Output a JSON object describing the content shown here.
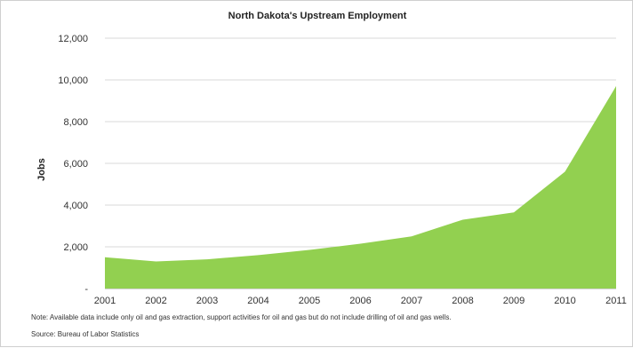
{
  "chart_data": {
    "type": "area",
    "title": "North Dakota's Upstream Employment",
    "xlabel": "",
    "ylabel": "Jobs",
    "x": [
      "2001",
      "2002",
      "2003",
      "2004",
      "2005",
      "2006",
      "2007",
      "2008",
      "2009",
      "2010",
      "2011"
    ],
    "series": [
      {
        "values": [
          1500,
          1300,
          1400,
          1600,
          1850,
          2150,
          2500,
          3300,
          3650,
          5600,
          9700
        ],
        "color": "#92d050"
      }
    ],
    "ylim": [
      0,
      12000
    ],
    "yticks": [
      {
        "value": 0,
        "label": "-"
      },
      {
        "value": 2000,
        "label": "2,000"
      },
      {
        "value": 4000,
        "label": "4,000"
      },
      {
        "value": 6000,
        "label": "6,000"
      },
      {
        "value": 8000,
        "label": "8,000"
      },
      {
        "value": 10000,
        "label": "10,000"
      },
      {
        "value": 12000,
        "label": "12,000"
      }
    ],
    "grid": true,
    "legend": "none"
  },
  "notes": {
    "note": "Note:  Available data include only oil and gas extraction, support activities for oil and gas but do not include drilling of oil and gas wells.",
    "source": "Source:  Bureau of Labor Statistics"
  }
}
